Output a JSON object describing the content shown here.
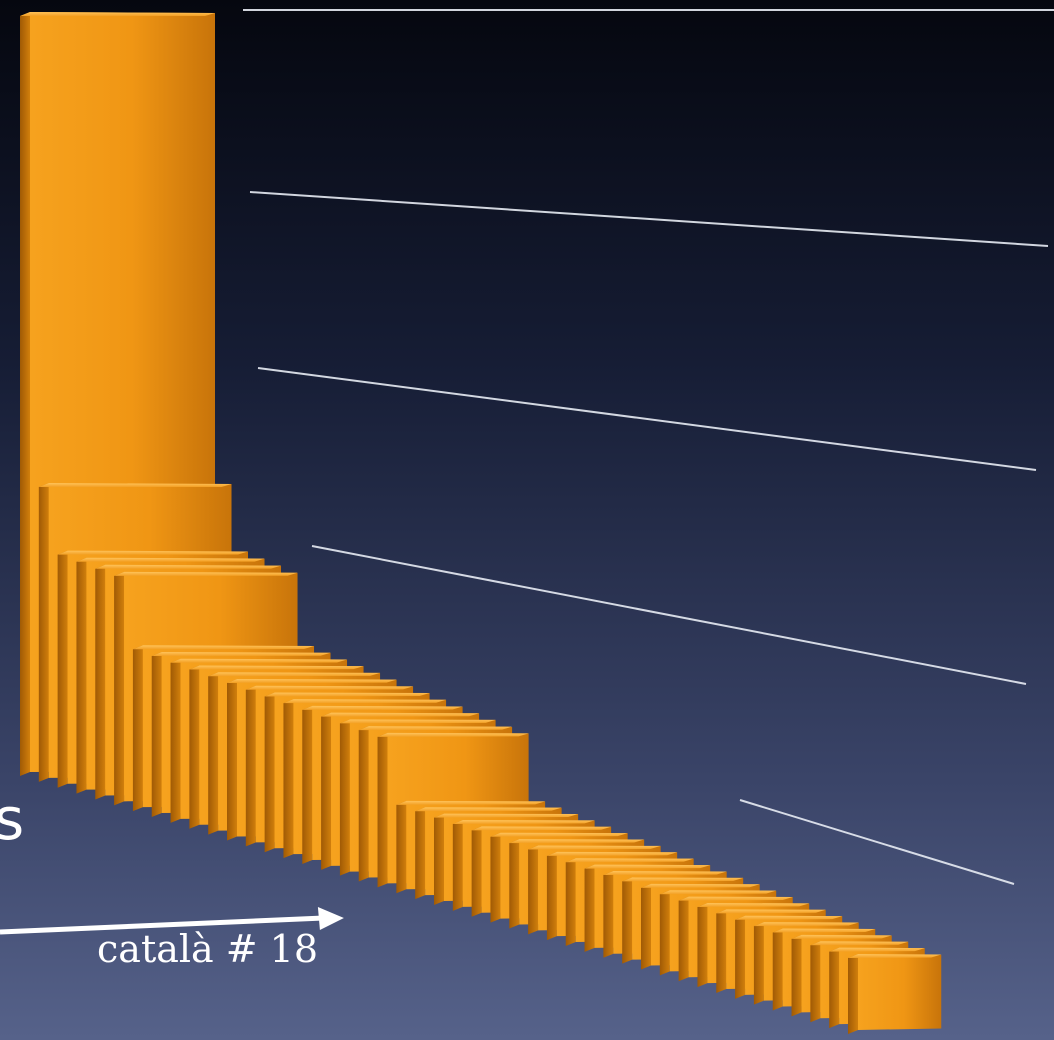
{
  "chart_data": {
    "type": "bar",
    "style": "3d-perspective",
    "series": [
      {
        "values": [
          100,
          39,
          31,
          31,
          31,
          31,
          22,
          22,
          22,
          22,
          22,
          22,
          22,
          22,
          22,
          22,
          22,
          22,
          22,
          22,
          13,
          13,
          13,
          13,
          13,
          13,
          13,
          13,
          13,
          13,
          13,
          13,
          13,
          13,
          13,
          13,
          13,
          13,
          13,
          13,
          13,
          13,
          13,
          13,
          13
        ]
      }
    ],
    "bar_color": "#f29a16",
    "gridline_color": "#e8ecf4",
    "gridlines": 5,
    "grid": true,
    "annotation": {
      "text": "català # 18",
      "target_index": 17
    },
    "edge_text": "s"
  }
}
